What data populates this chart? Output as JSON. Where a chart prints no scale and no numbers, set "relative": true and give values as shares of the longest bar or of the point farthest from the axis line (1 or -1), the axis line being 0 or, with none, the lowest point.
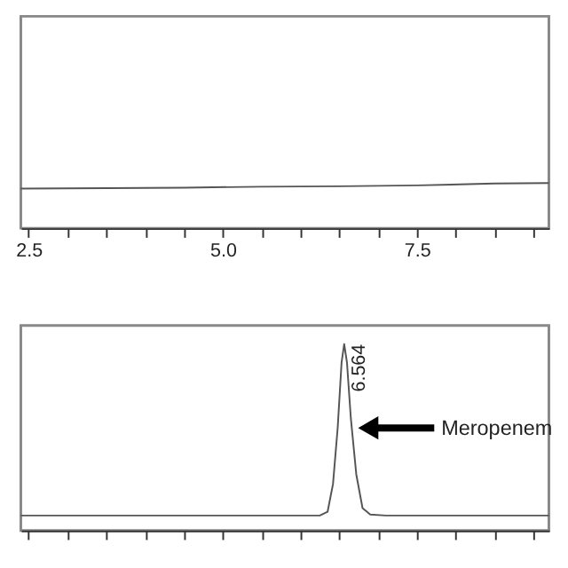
{
  "chart_data": [
    {
      "type": "line",
      "relative": true,
      "xlim": [
        2.4,
        9.2
      ],
      "xticks": [
        2.5,
        {
          "value": 3.0,
          "label": null
        },
        {
          "value": 3.5,
          "label": null
        },
        {
          "value": 4.0,
          "label": null
        },
        {
          "value": 4.5,
          "label": null
        },
        {
          "value": 5.0,
          "label": "5.0"
        },
        {
          "value": 5.5,
          "label": null
        },
        {
          "value": 6.0,
          "label": null
        },
        {
          "value": 6.5,
          "label": null
        },
        {
          "value": 7.0,
          "label": null
        },
        7.5,
        {
          "value": 8.0,
          "label": null
        },
        {
          "value": 8.5,
          "label": null
        },
        {
          "value": 9.0,
          "label": null
        }
      ],
      "tick_labels": "x",
      "grid": false,
      "series": [
        {
          "color": "#555555",
          "x": [
            2.4,
            3.5,
            4.5,
            5.5,
            6.5,
            7.5,
            8.5,
            9.2
          ],
          "values": [
            0.88,
            0.89,
            0.9,
            0.92,
            0.93,
            0.95,
            0.99,
            1
          ]
        }
      ]
    },
    {
      "type": "line",
      "relative": true,
      "xlim": [
        2.4,
        9.2
      ],
      "xticks": [
        2.5,
        3,
        3.5,
        4,
        4.5,
        5,
        5.5,
        6,
        6.5,
        7,
        7.5,
        8,
        8.5,
        9
      ],
      "tick_labels": false,
      "grid": false,
      "series": [
        {
          "color": "#555555",
          "x": [
            2.4,
            6.25,
            6.35,
            6.42,
            6.48,
            6.53,
            6.564,
            6.6,
            6.65,
            6.72,
            6.8,
            6.9,
            7.1,
            9.2
          ],
          "values": [
            0.08,
            0.08,
            0.1,
            0.25,
            0.55,
            0.9,
            1,
            0.9,
            0.6,
            0.3,
            0.12,
            0.085,
            0.08,
            0.08
          ]
        }
      ],
      "annotations": [
        {
          "text": "6.564",
          "x": 6.564,
          "y": 1
        },
        "Meropenem"
      ]
    }
  ]
}
